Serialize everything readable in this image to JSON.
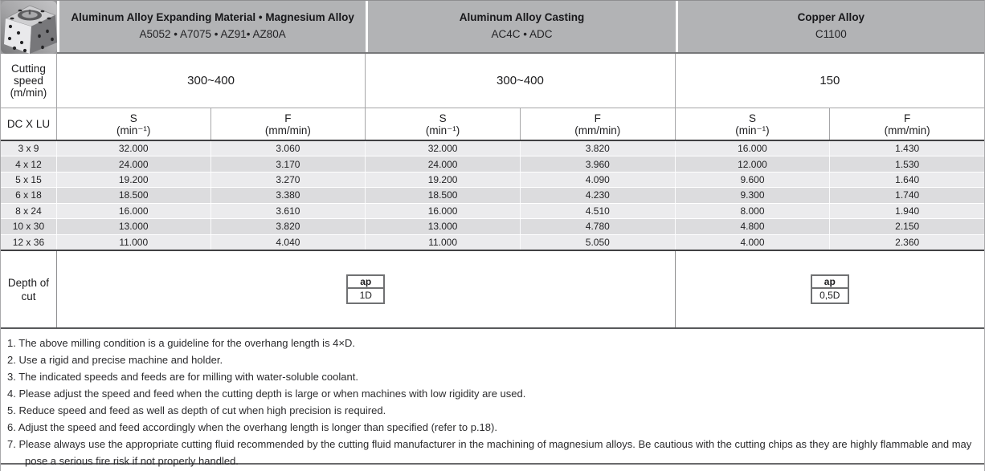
{
  "header": {
    "groups": [
      {
        "title": "Aluminum Alloy Expanding Material • Magnesium Alloy",
        "subtitle": "A5052 • A7075 • AZ91• AZ80A"
      },
      {
        "title": "Aluminum Alloy Casting",
        "subtitle": "AC4C • ADC"
      },
      {
        "title": "Copper Alloy",
        "subtitle": "C1100"
      }
    ]
  },
  "cutting_speed": {
    "label": "Cutting speed (m/min)",
    "values": [
      "300~400",
      "300~400",
      "150"
    ]
  },
  "columns": {
    "dc_label": "DC X LU",
    "s_label": "S",
    "s_unit": "(min⁻¹)",
    "f_label": "F",
    "f_unit": "(mm/min)"
  },
  "table": {
    "rows": [
      {
        "dc": "3 x 9",
        "values": [
          "32.000",
          "3.060",
          "32.000",
          "3.820",
          "16.000",
          "1.430"
        ]
      },
      {
        "dc": "4 x 12",
        "values": [
          "24.000",
          "3.170",
          "24.000",
          "3.960",
          "12.000",
          "1.530"
        ]
      },
      {
        "dc": "5 x 15",
        "values": [
          "19.200",
          "3.270",
          "19.200",
          "4.090",
          "9.600",
          "1.640"
        ]
      },
      {
        "dc": "6 x 18",
        "values": [
          "18.500",
          "3.380",
          "18.500",
          "4.230",
          "9.300",
          "1.740"
        ]
      },
      {
        "dc": "8 x 24",
        "values": [
          "16.000",
          "3.610",
          "16.000",
          "4.510",
          "8.000",
          "1.940"
        ]
      },
      {
        "dc": "10 x 30",
        "values": [
          "13.000",
          "3.820",
          "13.000",
          "4.780",
          "4.800",
          "2.150"
        ]
      },
      {
        "dc": "12 x 36",
        "values": [
          "11.000",
          "4.040",
          "11.000",
          "5.050",
          "4.000",
          "2.360"
        ]
      }
    ]
  },
  "depth_of_cut": {
    "label": "Depth of cut",
    "boxes": [
      {
        "title": "ap",
        "value": "1D"
      },
      {
        "title": "ap",
        "value": "0,5D"
      }
    ]
  },
  "notes": [
    "1. The above milling condition is a guideline for the overhang length is 4×D.",
    "2. Use a rigid and precise machine and holder.",
    "3. The indicated speeds and feeds are for milling with water-soluble coolant.",
    "4. Please adjust the speed and feed when the cutting depth is large or when machines with low rigidity are used.",
    "5. Reduce speed and feed as well as depth of cut when high precision is required.",
    "6. Adjust the speed and feed accordingly when the overhang length is longer than specified (refer to p.18).",
    "7.  Please always use the appropriate cutting fluid recommended by the cutting fluid manufacturer in the machining of magnesium alloys. Be cautious with the cutting chips as they are highly flammable and may pose a serious fire risk if not properly handled."
  ],
  "colors": {
    "header_bg": "#b2b3b5",
    "row_light": "#ebebed",
    "row_dark": "#dcdcde",
    "dark_rule": "#414143"
  }
}
